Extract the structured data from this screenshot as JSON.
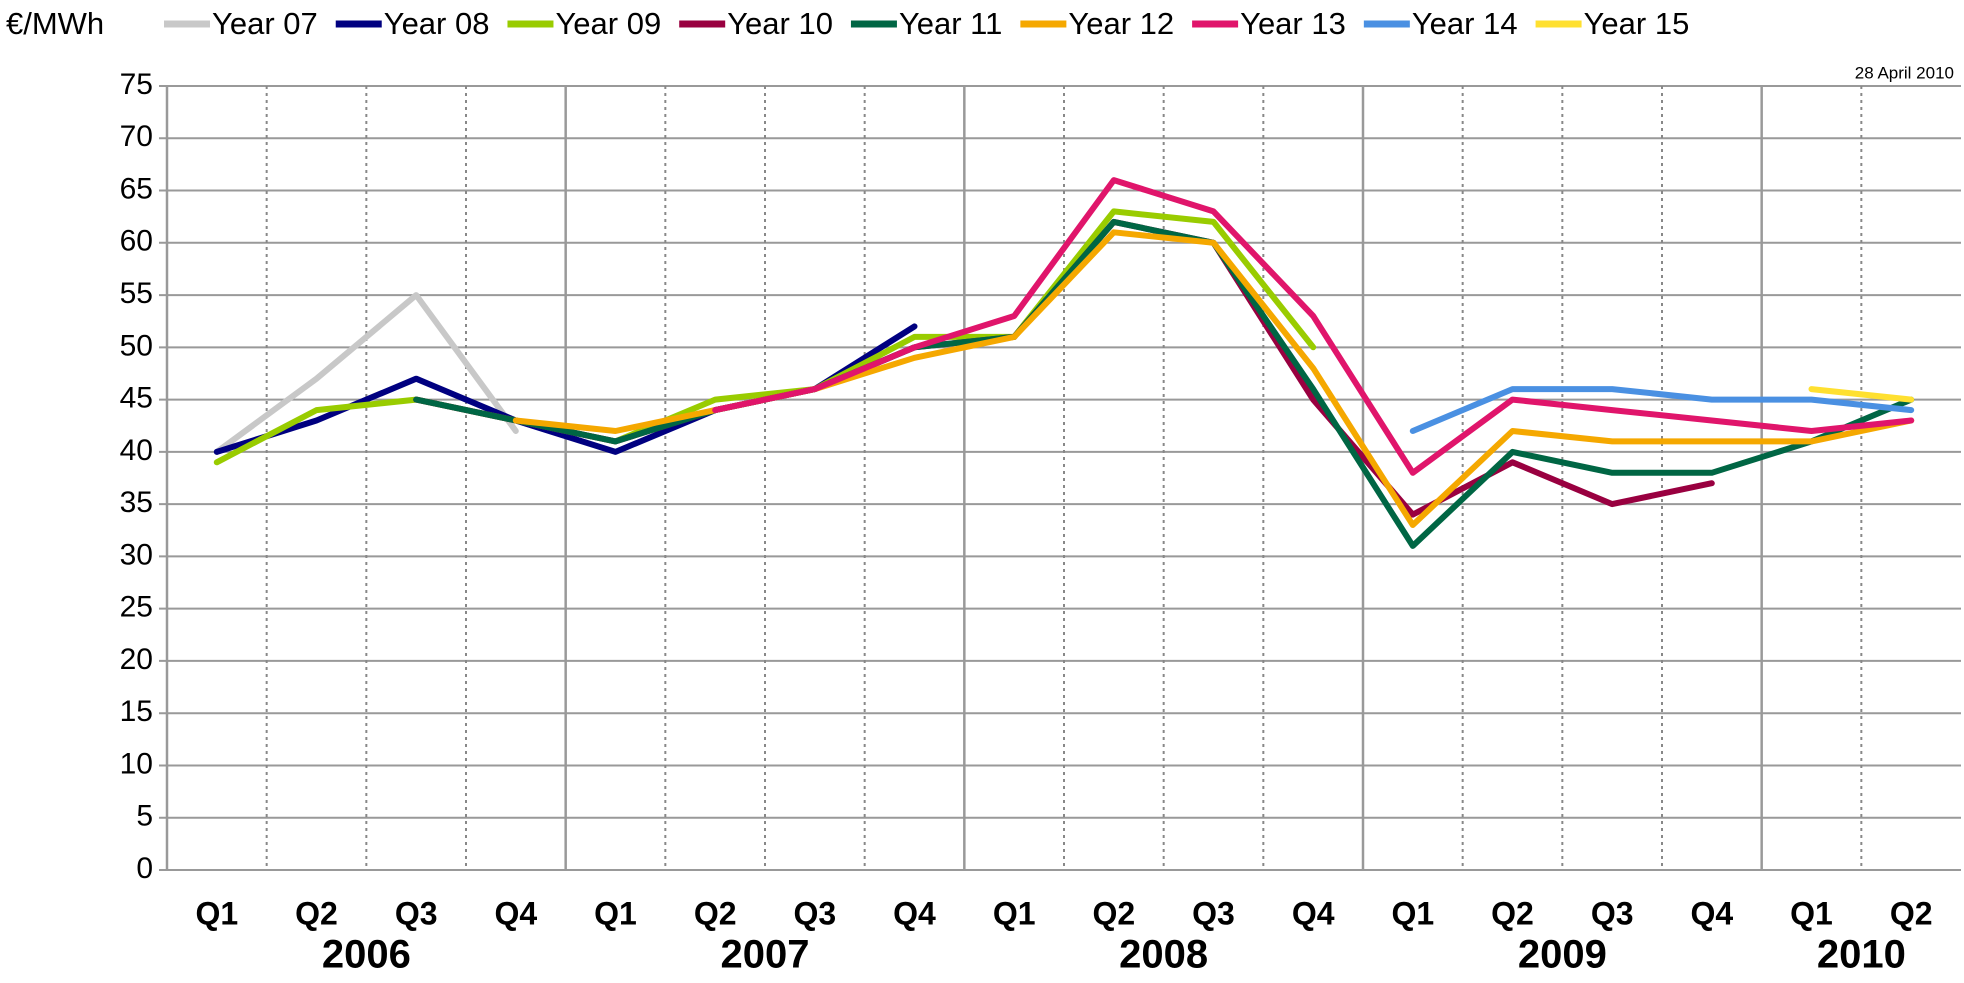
{
  "chart_data": {
    "type": "line",
    "title": "€/MWh",
    "annotation": "28 April 2010",
    "categories": [
      "Q1",
      "Q2",
      "Q3",
      "Q4",
      "Q1",
      "Q2",
      "Q3",
      "Q4",
      "Q1",
      "Q2",
      "Q3",
      "Q4",
      "Q1",
      "Q2",
      "Q3",
      "Q4",
      "Q1",
      "Q2"
    ],
    "years": [
      "2006",
      "2007",
      "2008",
      "2009",
      "2010"
    ],
    "ylim": [
      0,
      75
    ],
    "yticks": [
      0,
      5,
      10,
      15,
      20,
      25,
      30,
      35,
      40,
      45,
      50,
      55,
      60,
      65,
      70,
      75
    ],
    "grid": true,
    "legend": "top",
    "series": [
      {
        "name": "Year 07",
        "color": "#c8c8c8",
        "values": [
          40,
          47,
          55,
          42,
          null,
          null,
          null,
          null,
          null,
          null,
          null,
          null,
          null,
          null,
          null,
          null,
          null,
          null
        ]
      },
      {
        "name": "Year 08",
        "color": "#000080",
        "values": [
          40,
          43,
          47,
          43,
          40,
          44,
          46,
          52,
          null,
          null,
          null,
          null,
          null,
          null,
          null,
          null,
          null,
          null
        ]
      },
      {
        "name": "Year 09",
        "color": "#99cc00",
        "values": [
          39,
          44,
          45,
          43,
          41,
          45,
          46,
          51,
          51,
          63,
          62,
          50,
          null,
          null,
          null,
          null,
          null,
          null
        ]
      },
      {
        "name": "Year 10",
        "color": "#990040",
        "values": [
          null,
          null,
          45,
          43,
          41,
          44,
          46,
          50,
          51,
          62,
          60,
          45,
          34,
          39,
          35,
          37,
          null,
          null
        ]
      },
      {
        "name": "Year 11",
        "color": "#006644",
        "values": [
          null,
          null,
          45,
          43,
          41,
          44,
          46,
          50,
          51,
          62,
          60,
          46,
          31,
          40,
          38,
          38,
          41,
          45
        ]
      },
      {
        "name": "Year 12",
        "color": "#f5a800",
        "values": [
          null,
          null,
          null,
          43,
          42,
          44,
          46,
          49,
          51,
          61,
          60,
          48,
          33,
          42,
          41,
          41,
          41,
          43
        ]
      },
      {
        "name": "Year 13",
        "color": "#e0156b",
        "values": [
          null,
          null,
          null,
          null,
          null,
          44,
          46,
          50,
          53,
          66,
          63,
          53,
          38,
          45,
          44,
          43,
          42,
          43
        ]
      },
      {
        "name": "Year 14",
        "color": "#4a90e2",
        "values": [
          null,
          null,
          null,
          null,
          null,
          null,
          null,
          null,
          null,
          null,
          null,
          null,
          42,
          46,
          46,
          45,
          45,
          44
        ]
      },
      {
        "name": "Year 15",
        "color": "#ffe030",
        "values": [
          null,
          null,
          null,
          null,
          null,
          null,
          null,
          null,
          null,
          null,
          null,
          null,
          null,
          null,
          null,
          null,
          46,
          45
        ]
      }
    ]
  }
}
